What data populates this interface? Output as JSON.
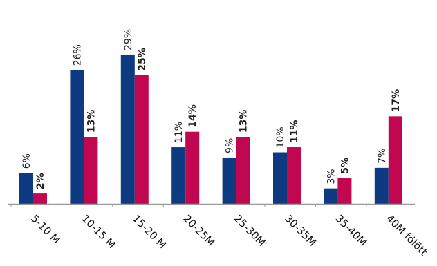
{
  "chart_data": {
    "type": "bar",
    "categories": [
      "5-10 M",
      "10-15 M",
      "15-20 M",
      "20-25M",
      "25-30M",
      "30-35M",
      "35-40M",
      "40M fölött"
    ],
    "series": [
      {
        "values": [
          6,
          26,
          29,
          11,
          9,
          10,
          3,
          7
        ],
        "labels": [
          "6%",
          "26%",
          "29%",
          "11%",
          "9%",
          "10%",
          "3%",
          "7%"
        ],
        "color": "#0d3a80"
      },
      {
        "values": [
          2,
          13,
          25,
          14,
          13,
          11,
          5,
          17
        ],
        "labels": [
          "2%",
          "13%",
          "25%",
          "14%",
          "13%",
          "11%",
          "5%",
          "17%"
        ],
        "color": "#c0074f"
      }
    ],
    "title": "",
    "xlabel": "",
    "ylabel": "",
    "ylim": [
      0,
      30
    ],
    "grid": false,
    "legend": "none",
    "baseline_color": "#9a9a9a"
  }
}
